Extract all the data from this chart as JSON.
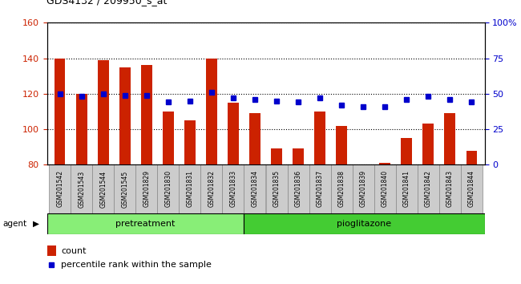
{
  "title": "GDS4132 / 209950_s_at",
  "samples": [
    "GSM201542",
    "GSM201543",
    "GSM201544",
    "GSM201545",
    "GSM201829",
    "GSM201830",
    "GSM201831",
    "GSM201832",
    "GSM201833",
    "GSM201834",
    "GSM201835",
    "GSM201836",
    "GSM201837",
    "GSM201838",
    "GSM201839",
    "GSM201840",
    "GSM201841",
    "GSM201842",
    "GSM201843",
    "GSM201844"
  ],
  "counts": [
    140,
    120,
    139,
    135,
    136,
    110,
    105,
    140,
    115,
    109,
    89,
    89,
    110,
    102,
    80,
    81,
    95,
    103,
    109,
    88
  ],
  "percentiles": [
    50,
    48,
    50,
    49,
    49,
    44,
    45,
    51,
    47,
    46,
    45,
    44,
    47,
    42,
    41,
    41,
    46,
    48,
    46,
    44
  ],
  "pretreatment_count": 9,
  "pioglitazone_count": 11,
  "ylim_left": [
    80,
    160
  ],
  "ylim_right": [
    0,
    100
  ],
  "yticks_left": [
    80,
    100,
    120,
    140,
    160
  ],
  "yticks_right": [
    0,
    25,
    50,
    75,
    100
  ],
  "ytick_labels_right": [
    "0",
    "25",
    "50",
    "75",
    "100%"
  ],
  "bar_color": "#cc2200",
  "dot_color": "#0000cc",
  "pretreatment_color": "#88ee77",
  "pioglitazone_color": "#44cc33",
  "agent_label": "agent",
  "pretreatment_label": "pretreatment",
  "pioglitazone_label": "pioglitazone",
  "legend_count_label": "count",
  "legend_pct_label": "percentile rank within the sample",
  "bar_width": 0.5,
  "tick_bg_color": "#cccccc",
  "plot_bg_color": "#ffffff"
}
